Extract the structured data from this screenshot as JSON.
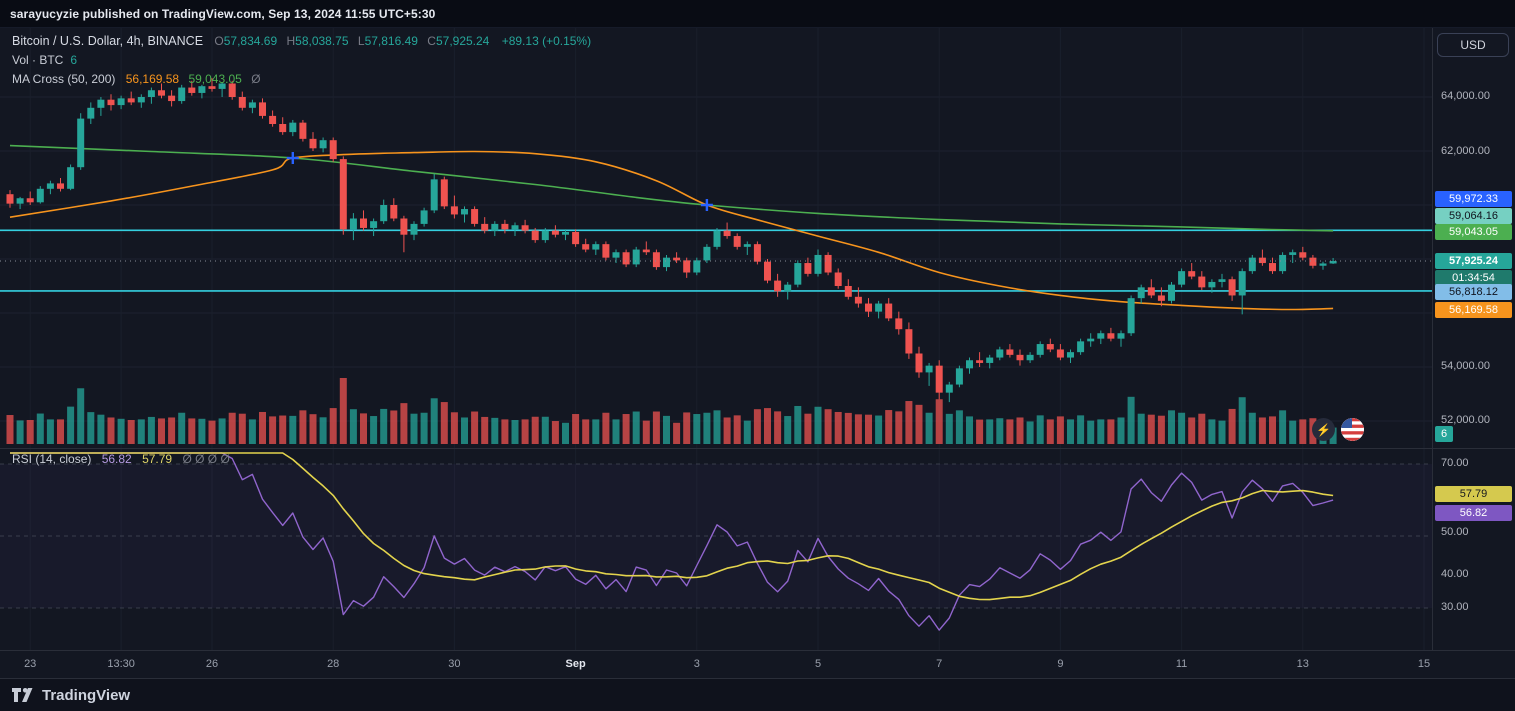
{
  "topbar": {
    "text": "sarayucyzie published on TradingView.com, Sep 13, 2024 11:55 UTC+5:30"
  },
  "legend": {
    "symbol": "Bitcoin / U.S. Dollar, 4h, BINANCE",
    "o_label": "O",
    "o": "57,834.69",
    "h_label": "H",
    "h": "58,038.75",
    "l_label": "L",
    "l": "57,816.49",
    "c_label": "C",
    "c": "57,925.24",
    "change": "+89.13 (+0.15%)",
    "vol_label": "Vol · BTC",
    "vol_value": "6",
    "ma_label": "MA Cross (50, 200)",
    "ma50_value": "56,169.58",
    "ma200_value": "59,043.05",
    "ma_null": "Ø"
  },
  "rsi_legend": {
    "label": "RSI (14, close)",
    "rsi_value": "56.82",
    "ma_value": "57.79",
    "nulls": "Ø Ø Ø Ø"
  },
  "price_axis": {
    "currency": "USD",
    "ticks": [
      {
        "text": "64,000.00"
      },
      {
        "text": "62,000.00"
      },
      {
        "text": "54,000.00"
      },
      {
        "text": "52,000.00"
      }
    ],
    "badges": [
      {
        "text": "59,972.33"
      },
      {
        "text": "59,064.16"
      },
      {
        "text": "59,043.05"
      },
      {
        "text": "57,925.24"
      },
      {
        "text": "01:34:54"
      },
      {
        "text": "56,818.12"
      },
      {
        "text": "56,169.58"
      },
      {
        "text": "6"
      }
    ]
  },
  "rsi_axis": {
    "ticks": [
      {
        "text": "70.00"
      },
      {
        "text": "50.00"
      },
      {
        "text": "40.00"
      },
      {
        "text": "30.00"
      }
    ],
    "badges": [
      {
        "text": "57.79"
      },
      {
        "text": "56.82"
      }
    ]
  },
  "footer": {
    "brand": "TradingView"
  },
  "colors": {
    "up": "#26a69a",
    "down": "#ef5350",
    "ma50": "#f7941d",
    "ma200": "#4caf50",
    "hline": "#35d0e0",
    "rsi": "#9065cd",
    "rsi_ma": "#e3d44d",
    "accent_blue": "#2962ff",
    "grid": "#1c2230",
    "current_price_line": "#8a8f99"
  },
  "chart_data": {
    "type": "candlestick",
    "title": "Bitcoin / U.S. Dollar, 4h, BINANCE",
    "interval": "4h",
    "exchange": "BINANCE",
    "ohlc_last": {
      "open": 57834.69,
      "high": 58038.75,
      "low": 57816.49,
      "close": 57925.24,
      "change": 89.13,
      "change_pct": 0.15
    },
    "current_price": 57925.24,
    "countdown": "01:34:54",
    "volume_last": 6,
    "hlines": [
      59064.16,
      56818.12
    ],
    "alert_price": 59972.33,
    "ma50_last": 56169.58,
    "ma200_last": 59043.05,
    "price_axis_ticks": [
      64000,
      62000,
      54000,
      52000
    ],
    "ylim": [
      51500,
      65500
    ],
    "legend_position": "top-left",
    "grid": true,
    "candles": [
      [
        60400,
        60550,
        59900,
        60050
      ],
      [
        60050,
        60300,
        59850,
        60250
      ],
      [
        60250,
        60500,
        60000,
        60100
      ],
      [
        60100,
        60700,
        60050,
        60600
      ],
      [
        60600,
        60900,
        60400,
        60800
      ],
      [
        60800,
        61000,
        60500,
        60600
      ],
      [
        60600,
        61500,
        60550,
        61400
      ],
      [
        61400,
        63400,
        61300,
        63200
      ],
      [
        63200,
        63800,
        63000,
        63600
      ],
      [
        63600,
        64000,
        63300,
        63900
      ],
      [
        63900,
        64100,
        63500,
        63700
      ],
      [
        63700,
        64050,
        63550,
        63950
      ],
      [
        63950,
        64200,
        63700,
        63800
      ],
      [
        63800,
        64100,
        63600,
        64000
      ],
      [
        64000,
        64350,
        63750,
        64250
      ],
      [
        64250,
        64500,
        63950,
        64050
      ],
      [
        64050,
        64250,
        63650,
        63850
      ],
      [
        63850,
        64450,
        63750,
        64350
      ],
      [
        64350,
        64600,
        64050,
        64150
      ],
      [
        64150,
        64450,
        63950,
        64400
      ],
      [
        64400,
        64700,
        64200,
        64300
      ],
      [
        64300,
        64550,
        64000,
        64500
      ],
      [
        64500,
        64600,
        63900,
        64000
      ],
      [
        64000,
        64200,
        63500,
        63600
      ],
      [
        63600,
        63900,
        63400,
        63800
      ],
      [
        63800,
        63950,
        63200,
        63300
      ],
      [
        63300,
        63500,
        62900,
        63000
      ],
      [
        63000,
        63250,
        62600,
        62700
      ],
      [
        62700,
        63150,
        62550,
        63050
      ],
      [
        63050,
        63150,
        62350,
        62450
      ],
      [
        62450,
        62700,
        62000,
        62100
      ],
      [
        62100,
        62500,
        61950,
        62400
      ],
      [
        62400,
        62500,
        61600,
        61700
      ],
      [
        61700,
        61800,
        58900,
        59100
      ],
      [
        59100,
        59700,
        58700,
        59500
      ],
      [
        59500,
        59800,
        59050,
        59150
      ],
      [
        59150,
        59500,
        58850,
        59400
      ],
      [
        59400,
        60200,
        59300,
        60000
      ],
      [
        60000,
        60250,
        59400,
        59500
      ],
      [
        59500,
        59600,
        58250,
        58900
      ],
      [
        58900,
        59400,
        58700,
        59300
      ],
      [
        59300,
        59900,
        59200,
        59800
      ],
      [
        59800,
        61150,
        59700,
        60950
      ],
      [
        60950,
        61050,
        59850,
        59950
      ],
      [
        59950,
        60350,
        59500,
        59650
      ],
      [
        59650,
        59950,
        59350,
        59850
      ],
      [
        59850,
        59950,
        59200,
        59300
      ],
      [
        59300,
        59550,
        58950,
        59050
      ],
      [
        59050,
        59400,
        58850,
        59300
      ],
      [
        59300,
        59450,
        58950,
        59100
      ],
      [
        59100,
        59350,
        58850,
        59250
      ],
      [
        59250,
        59450,
        58950,
        59050
      ],
      [
        59050,
        59150,
        58600,
        58700
      ],
      [
        58700,
        59150,
        58600,
        59050
      ],
      [
        59050,
        59250,
        58800,
        58900
      ],
      [
        58900,
        59100,
        58700,
        59000
      ],
      [
        59000,
        59100,
        58450,
        58550
      ],
      [
        58550,
        58750,
        58250,
        58350
      ],
      [
        58350,
        58650,
        58150,
        58550
      ],
      [
        58550,
        58650,
        57950,
        58050
      ],
      [
        58050,
        58350,
        57850,
        58250
      ],
      [
        58250,
        58350,
        57700,
        57800
      ],
      [
        57800,
        58450,
        57700,
        58350
      ],
      [
        58350,
        58650,
        58150,
        58250
      ],
      [
        58250,
        58350,
        57600,
        57700
      ],
      [
        57700,
        58150,
        57550,
        58050
      ],
      [
        58050,
        58250,
        57850,
        57950
      ],
      [
        57950,
        58050,
        57300,
        57500
      ],
      [
        57500,
        58050,
        57400,
        57950
      ],
      [
        57950,
        58550,
        57850,
        58450
      ],
      [
        58450,
        59150,
        58350,
        59050
      ],
      [
        59050,
        59350,
        58750,
        58850
      ],
      [
        58850,
        58950,
        58350,
        58450
      ],
      [
        58450,
        58650,
        58150,
        58550
      ],
      [
        58550,
        58650,
        57800,
        57900
      ],
      [
        57900,
        58000,
        57100,
        57200
      ],
      [
        57200,
        57450,
        56600,
        56800
      ],
      [
        56800,
        57150,
        56500,
        57050
      ],
      [
        57050,
        57950,
        56950,
        57850
      ],
      [
        57850,
        58050,
        57350,
        57450
      ],
      [
        57450,
        58350,
        57350,
        58150
      ],
      [
        58150,
        58250,
        57400,
        57500
      ],
      [
        57500,
        57650,
        56900,
        57000
      ],
      [
        57000,
        57250,
        56500,
        56600
      ],
      [
        56600,
        56950,
        56200,
        56350
      ],
      [
        56350,
        56550,
        55850,
        56050
      ],
      [
        56050,
        56450,
        55800,
        56350
      ],
      [
        56350,
        56550,
        55700,
        55800
      ],
      [
        55800,
        56050,
        55200,
        55400
      ],
      [
        55400,
        55650,
        54300,
        54500
      ],
      [
        54500,
        54750,
        53600,
        53800
      ],
      [
        53800,
        54150,
        53300,
        54050
      ],
      [
        54050,
        54250,
        52800,
        53050
      ],
      [
        53050,
        53450,
        52700,
        53350
      ],
      [
        53350,
        54050,
        53250,
        53950
      ],
      [
        53950,
        54350,
        53750,
        54250
      ],
      [
        54250,
        54550,
        54000,
        54150
      ],
      [
        54150,
        54450,
        53950,
        54350
      ],
      [
        54350,
        54750,
        54250,
        54650
      ],
      [
        54650,
        54850,
        54350,
        54450
      ],
      [
        54450,
        54650,
        54050,
        54250
      ],
      [
        54250,
        54550,
        54150,
        54450
      ],
      [
        54450,
        54950,
        54350,
        54850
      ],
      [
        54850,
        55050,
        54550,
        54650
      ],
      [
        54650,
        54850,
        54250,
        54350
      ],
      [
        54350,
        54650,
        54150,
        54550
      ],
      [
        54550,
        55050,
        54450,
        54950
      ],
      [
        54950,
        55250,
        54750,
        55050
      ],
      [
        55050,
        55350,
        54850,
        55250
      ],
      [
        55250,
        55450,
        54950,
        55050
      ],
      [
        55050,
        55350,
        54750,
        55250
      ],
      [
        55250,
        56650,
        55150,
        56550
      ],
      [
        56550,
        57050,
        56350,
        56950
      ],
      [
        56950,
        57250,
        56550,
        56650
      ],
      [
        56650,
        56950,
        56250,
        56450
      ],
      [
        56450,
        57150,
        56350,
        57050
      ],
      [
        57050,
        57650,
        56950,
        57550
      ],
      [
        57550,
        57850,
        57250,
        57350
      ],
      [
        57350,
        57550,
        56850,
        56950
      ],
      [
        56950,
        57250,
        56750,
        57150
      ],
      [
        57150,
        57450,
        56950,
        57250
      ],
      [
        57250,
        57350,
        56450,
        56650
      ],
      [
        56650,
        57650,
        55950,
        57550
      ],
      [
        57550,
        58150,
        57450,
        58050
      ],
      [
        58050,
        58350,
        57750,
        57850
      ],
      [
        57850,
        58050,
        57450,
        57550
      ],
      [
        57550,
        58250,
        57450,
        58150
      ],
      [
        58150,
        58350,
        57850,
        58250
      ],
      [
        58250,
        58450,
        57950,
        58050
      ],
      [
        58050,
        58150,
        57650,
        57750
      ],
      [
        57750,
        57900,
        57600,
        57834.69
      ],
      [
        57834.69,
        58038.75,
        57816.49,
        57925.24
      ]
    ],
    "ma50_points": [
      [
        0,
        59550
      ],
      [
        10,
        60150
      ],
      [
        18,
        60700
      ],
      [
        26,
        61300
      ],
      [
        28,
        61740
      ],
      [
        34,
        61880
      ],
      [
        40,
        61940
      ],
      [
        46,
        61980
      ],
      [
        52,
        61900
      ],
      [
        58,
        61600
      ],
      [
        64,
        60900
      ],
      [
        69,
        60000
      ],
      [
        74,
        59450
      ],
      [
        80,
        58850
      ],
      [
        86,
        58250
      ],
      [
        92,
        57500
      ],
      [
        98,
        57000
      ],
      [
        104,
        56650
      ],
      [
        110,
        56420
      ],
      [
        116,
        56280
      ],
      [
        122,
        56170
      ],
      [
        127,
        56130
      ],
      [
        131,
        56170
      ]
    ],
    "ma200_points": [
      [
        0,
        62200
      ],
      [
        14,
        61980
      ],
      [
        28,
        61740
      ],
      [
        40,
        61250
      ],
      [
        52,
        60760
      ],
      [
        62,
        60280
      ],
      [
        69,
        60000
      ],
      [
        80,
        59690
      ],
      [
        92,
        59460
      ],
      [
        104,
        59300
      ],
      [
        116,
        59190
      ],
      [
        124,
        59100
      ],
      [
        131,
        59043
      ]
    ],
    "cross_markers": [
      [
        28,
        61740
      ],
      [
        69,
        60000
      ]
    ],
    "rsi": {
      "length": 14,
      "source": "close",
      "last": 56.82,
      "ma_last": 57.79,
      "levels": [
        70,
        50,
        30
      ]
    },
    "time_ticks": [
      {
        "label": "23",
        "idx": 2
      },
      {
        "label": "13:30",
        "idx": 11
      },
      {
        "label": "26",
        "idx": 20
      },
      {
        "label": "28",
        "idx": 32
      },
      {
        "label": "30",
        "idx": 44
      },
      {
        "label": "Sep",
        "idx": 56,
        "major": true
      },
      {
        "label": "3",
        "idx": 68
      },
      {
        "label": "5",
        "idx": 80
      },
      {
        "label": "7",
        "idx": 92
      },
      {
        "label": "9",
        "idx": 104
      },
      {
        "label": "11",
        "idx": 116
      },
      {
        "label": "13",
        "idx": 128
      },
      {
        "label": "15",
        "idx": 140
      }
    ],
    "layout": {
      "x0": 10,
      "step": 10.1,
      "candle_width": 7,
      "pane_top": 28,
      "pane_bottom": 650,
      "chart_right": 1432,
      "price_map": {
        "p1": 64000,
        "y1": 97,
        "p2": 52000,
        "y2": 421
      },
      "vol_base": 444,
      "vol_max": 66,
      "rsi_map": {
        "v1": 70,
        "y1": 464,
        "v2": 30,
        "y2": 608
      },
      "rsi_top": 453,
      "rsi_bottom": 646
    }
  }
}
